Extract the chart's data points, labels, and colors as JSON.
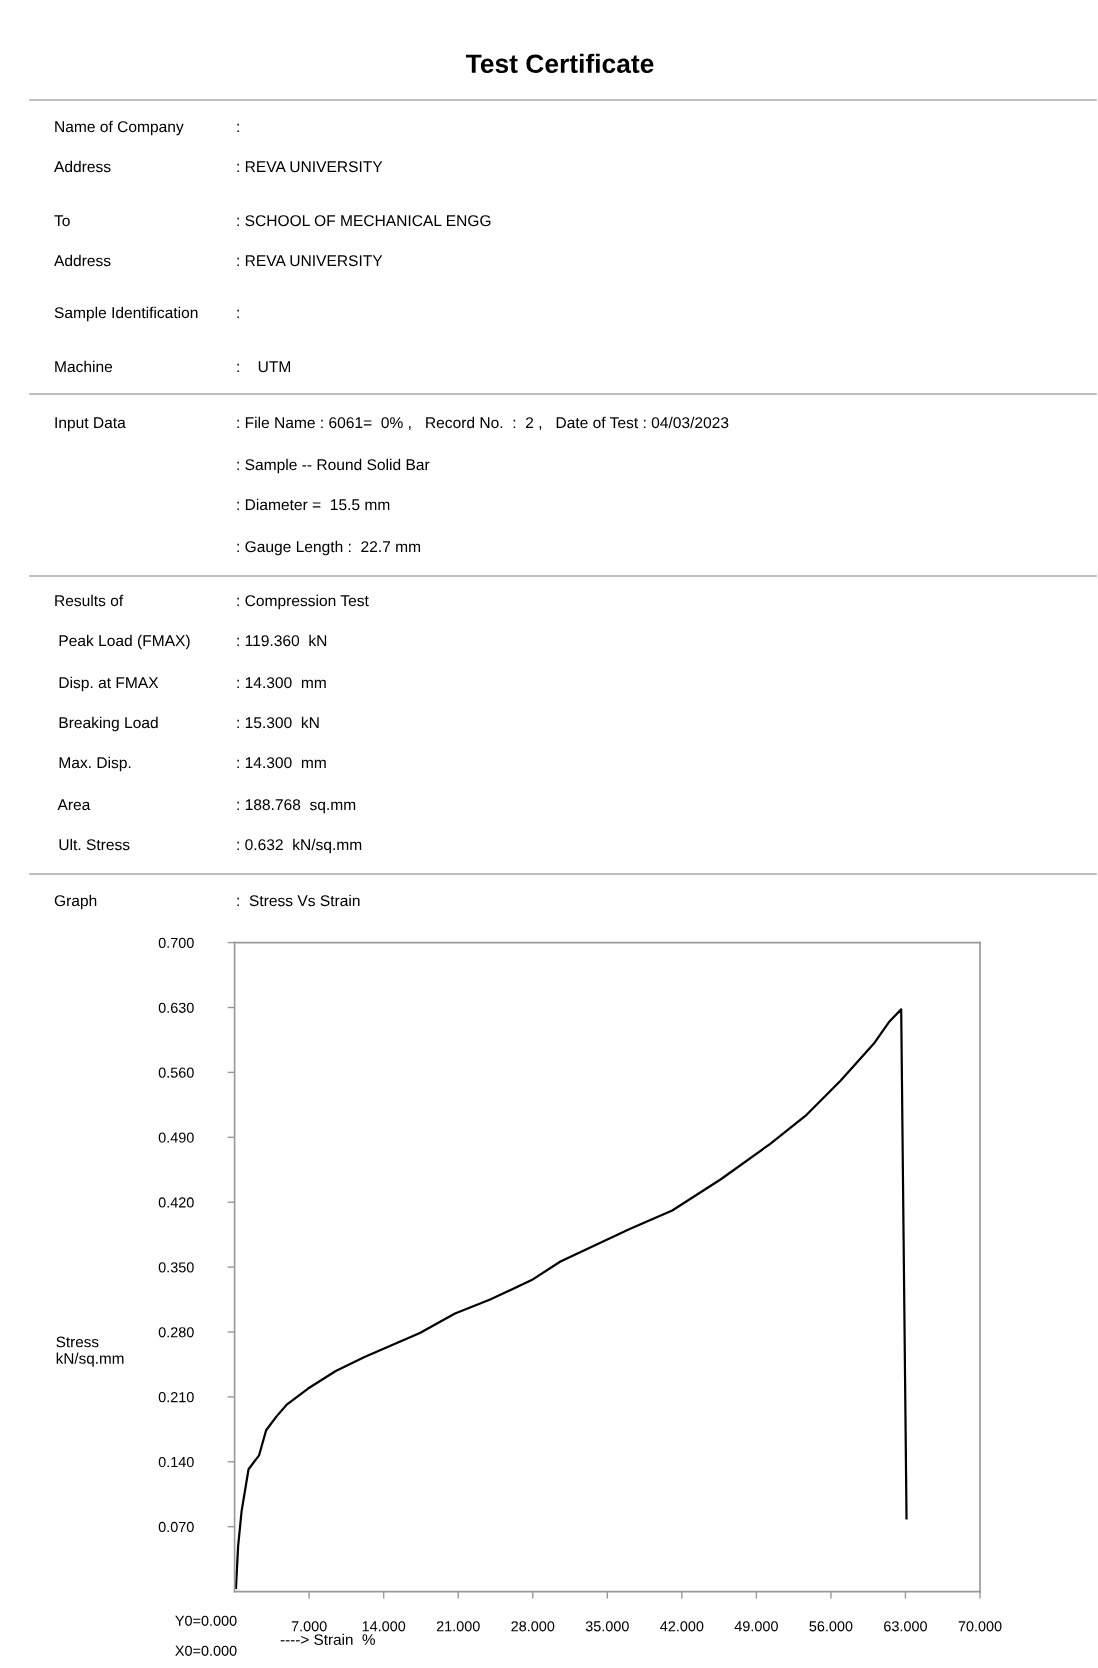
{
  "chart_data": {
    "type": "line",
    "title": "Test Certificate",
    "xlabel": "----> Strain  %",
    "ylabel": "Stress\nkN/sq.mm",
    "annotations": [
      "Name of Company",
      ":",
      "Address",
      ": REVA UNIVERSITY",
      "To",
      ": SCHOOL OF MECHANICAL ENGG",
      "Address",
      ": REVA UNIVERSITY",
      "Sample Identification",
      ":",
      "Machine",
      ":    UTM",
      "Input Data",
      ": File Name : 6061=  0% ,   Record No.  :  2 ,   Date of Test : 04/03/2023",
      null,
      ": Sample -- Round Solid Bar",
      null,
      ": Diameter =  15.5 mm",
      null,
      ": Gauge Length :  22.7 mm",
      "Results of",
      ": Compression Test",
      " Peak Load (FMAX)",
      ": 119.360  kN",
      " Disp. at FMAX",
      ": 14.300  mm",
      " Breaking Load",
      ": 15.300  kN",
      " Max. Disp.",
      ": 14.300  mm",
      " Area",
      ": 188.768  sq.mm",
      " Ult. Stress",
      ": 0.632  kN/sq.mm",
      "Graph",
      ":  Stress Vs Strain",
      "Y0=0.000",
      "X0=0.000"
    ],
    "x": [
      0.13,
      0.33,
      0.66,
      1.31,
      2.3,
      2.96,
      3.94,
      4.93,
      6.9,
      9.5,
      12.2,
      14.8,
      17.4,
      20.7,
      24.0,
      27.9,
      30.6,
      37.1,
      41.1,
      45.7,
      50.3,
      53.6,
      56.9,
      60.1,
      61.5,
      62.6,
      63.1
    ],
    "series": [
      {
        "color": "#000000",
        "values": [
          0.004,
          0.049,
          0.087,
          0.132,
          0.147,
          0.174,
          0.189,
          0.202,
          0.219,
          0.238,
          0.253,
          0.266,
          0.279,
          0.3,
          0.315,
          0.336,
          0.356,
          0.391,
          0.411,
          0.445,
          0.483,
          0.513,
          0.551,
          0.592,
          0.615,
          0.628,
          0.079
        ]
      }
    ],
    "xlim": [
      0,
      70
    ],
    "ylim": [
      0,
      0.7
    ],
    "xticks": [
      {
        "value": 7,
        "label": "7.000"
      },
      {
        "value": 14,
        "label": "14.000"
      },
      {
        "value": 21,
        "label": "21.000"
      },
      {
        "value": 28,
        "label": "28.000"
      },
      {
        "value": 35,
        "label": "35.000"
      },
      {
        "value": 42,
        "label": "42.000"
      },
      {
        "value": 49,
        "label": "49.000"
      },
      {
        "value": 56,
        "label": "56.000"
      },
      {
        "value": 63,
        "label": "63.000"
      },
      {
        "value": 70,
        "label": "70.000"
      }
    ],
    "yticks": [
      {
        "value": 0.07,
        "label": "0.070"
      },
      {
        "value": 0.14,
        "label": "0.140"
      },
      {
        "value": 0.21,
        "label": "0.210"
      },
      {
        "value": 0.28,
        "label": "0.280"
      },
      {
        "value": 0.35,
        "label": "0.350"
      },
      {
        "value": 0.42,
        "label": "0.420"
      },
      {
        "value": 0.49,
        "label": "0.490"
      },
      {
        "value": 0.56,
        "label": "0.560"
      },
      {
        "value": 0.63,
        "label": "0.630"
      },
      {
        "value": 0.7,
        "label": "0.700"
      }
    ],
    "grid": false,
    "legend": false,
    "marker": "none",
    "line_style": "solid"
  }
}
